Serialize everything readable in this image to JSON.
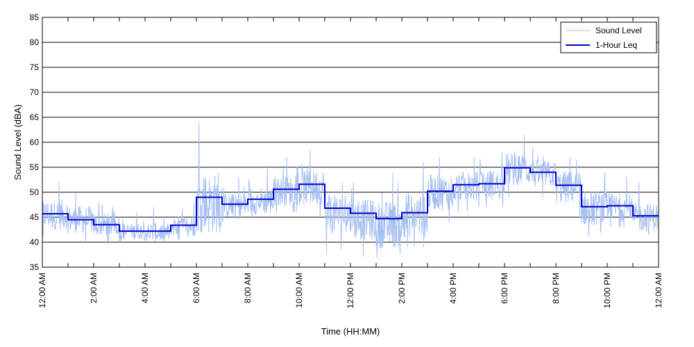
{
  "chart_data": {
    "type": "line",
    "xlabel": "Time (HH:MM)",
    "ylabel": "Sound Level (dBA)",
    "ylim": [
      35,
      85
    ],
    "xlim": [
      0,
      24
    ],
    "yticks": [
      35,
      40,
      45,
      50,
      55,
      60,
      65,
      70,
      75,
      80,
      85
    ],
    "xtick_hours": [
      0,
      2,
      4,
      6,
      8,
      10,
      12,
      14,
      16,
      18,
      20,
      22,
      24
    ],
    "xtick_labels": [
      "12:00 AM",
      "2:00 AM",
      "4:00 AM",
      "6:00 AM",
      "8:00 AM",
      "10:00 AM",
      "12:00 PM",
      "2:00 PM",
      "4:00 PM",
      "6:00 PM",
      "8:00 PM",
      "10:00 PM",
      "12:00 AM"
    ],
    "grid": "horizontal",
    "legend_position": "top-right",
    "legend": [
      "Sound Level",
      "1-Hour Leq"
    ],
    "colors": {
      "sound_level": "#a6bff2",
      "leq": "#0000cc",
      "grid": "#000000"
    },
    "series": [
      {
        "name": "1-Hour Leq",
        "step": true,
        "hours": [
          0,
          1,
          2,
          3,
          4,
          5,
          6,
          7,
          8,
          9,
          10,
          11,
          12,
          13,
          14,
          15,
          16,
          17,
          18,
          19,
          20,
          21,
          22,
          23
        ],
        "values": [
          45.7,
          44.5,
          43.5,
          42.2,
          42.2,
          43.4,
          49.0,
          47.6,
          48.6,
          50.6,
          51.6,
          46.8,
          45.8,
          44.7,
          45.9,
          50.2,
          51.5,
          51.7,
          54.9,
          54.0,
          51.4,
          47.1,
          47.3,
          45.3
        ]
      },
      {
        "name": "Sound Level",
        "hourly_mean": [
          45.5,
          44.5,
          43.5,
          42.2,
          42.0,
          43.2,
          47.8,
          47.3,
          48.3,
          50.2,
          51.0,
          45.5,
          44.5,
          43.5,
          45.5,
          50.0,
          51.2,
          51.5,
          54.5,
          53.6,
          51.0,
          46.8,
          47.0,
          45.0
        ],
        "hourly_min": [
          41.0,
          40.0,
          39.5,
          40.0,
          40.0,
          40.5,
          42.0,
          44.0,
          45.0,
          46.0,
          45.0,
          37.5,
          37.0,
          36.8,
          39.0,
          44.0,
          46.0,
          47.0,
          49.0,
          49.0,
          45.0,
          41.0,
          43.0,
          41.5
        ],
        "hourly_max": [
          52.0,
          50.0,
          48.0,
          46.0,
          47.0,
          48.0,
          64.0,
          53.0,
          55.0,
          57.0,
          58.5,
          52.0,
          52.0,
          54.0,
          56.0,
          57.0,
          57.0,
          58.0,
          61.5,
          59.0,
          57.0,
          54.0,
          53.0,
          52.0
        ]
      }
    ]
  }
}
